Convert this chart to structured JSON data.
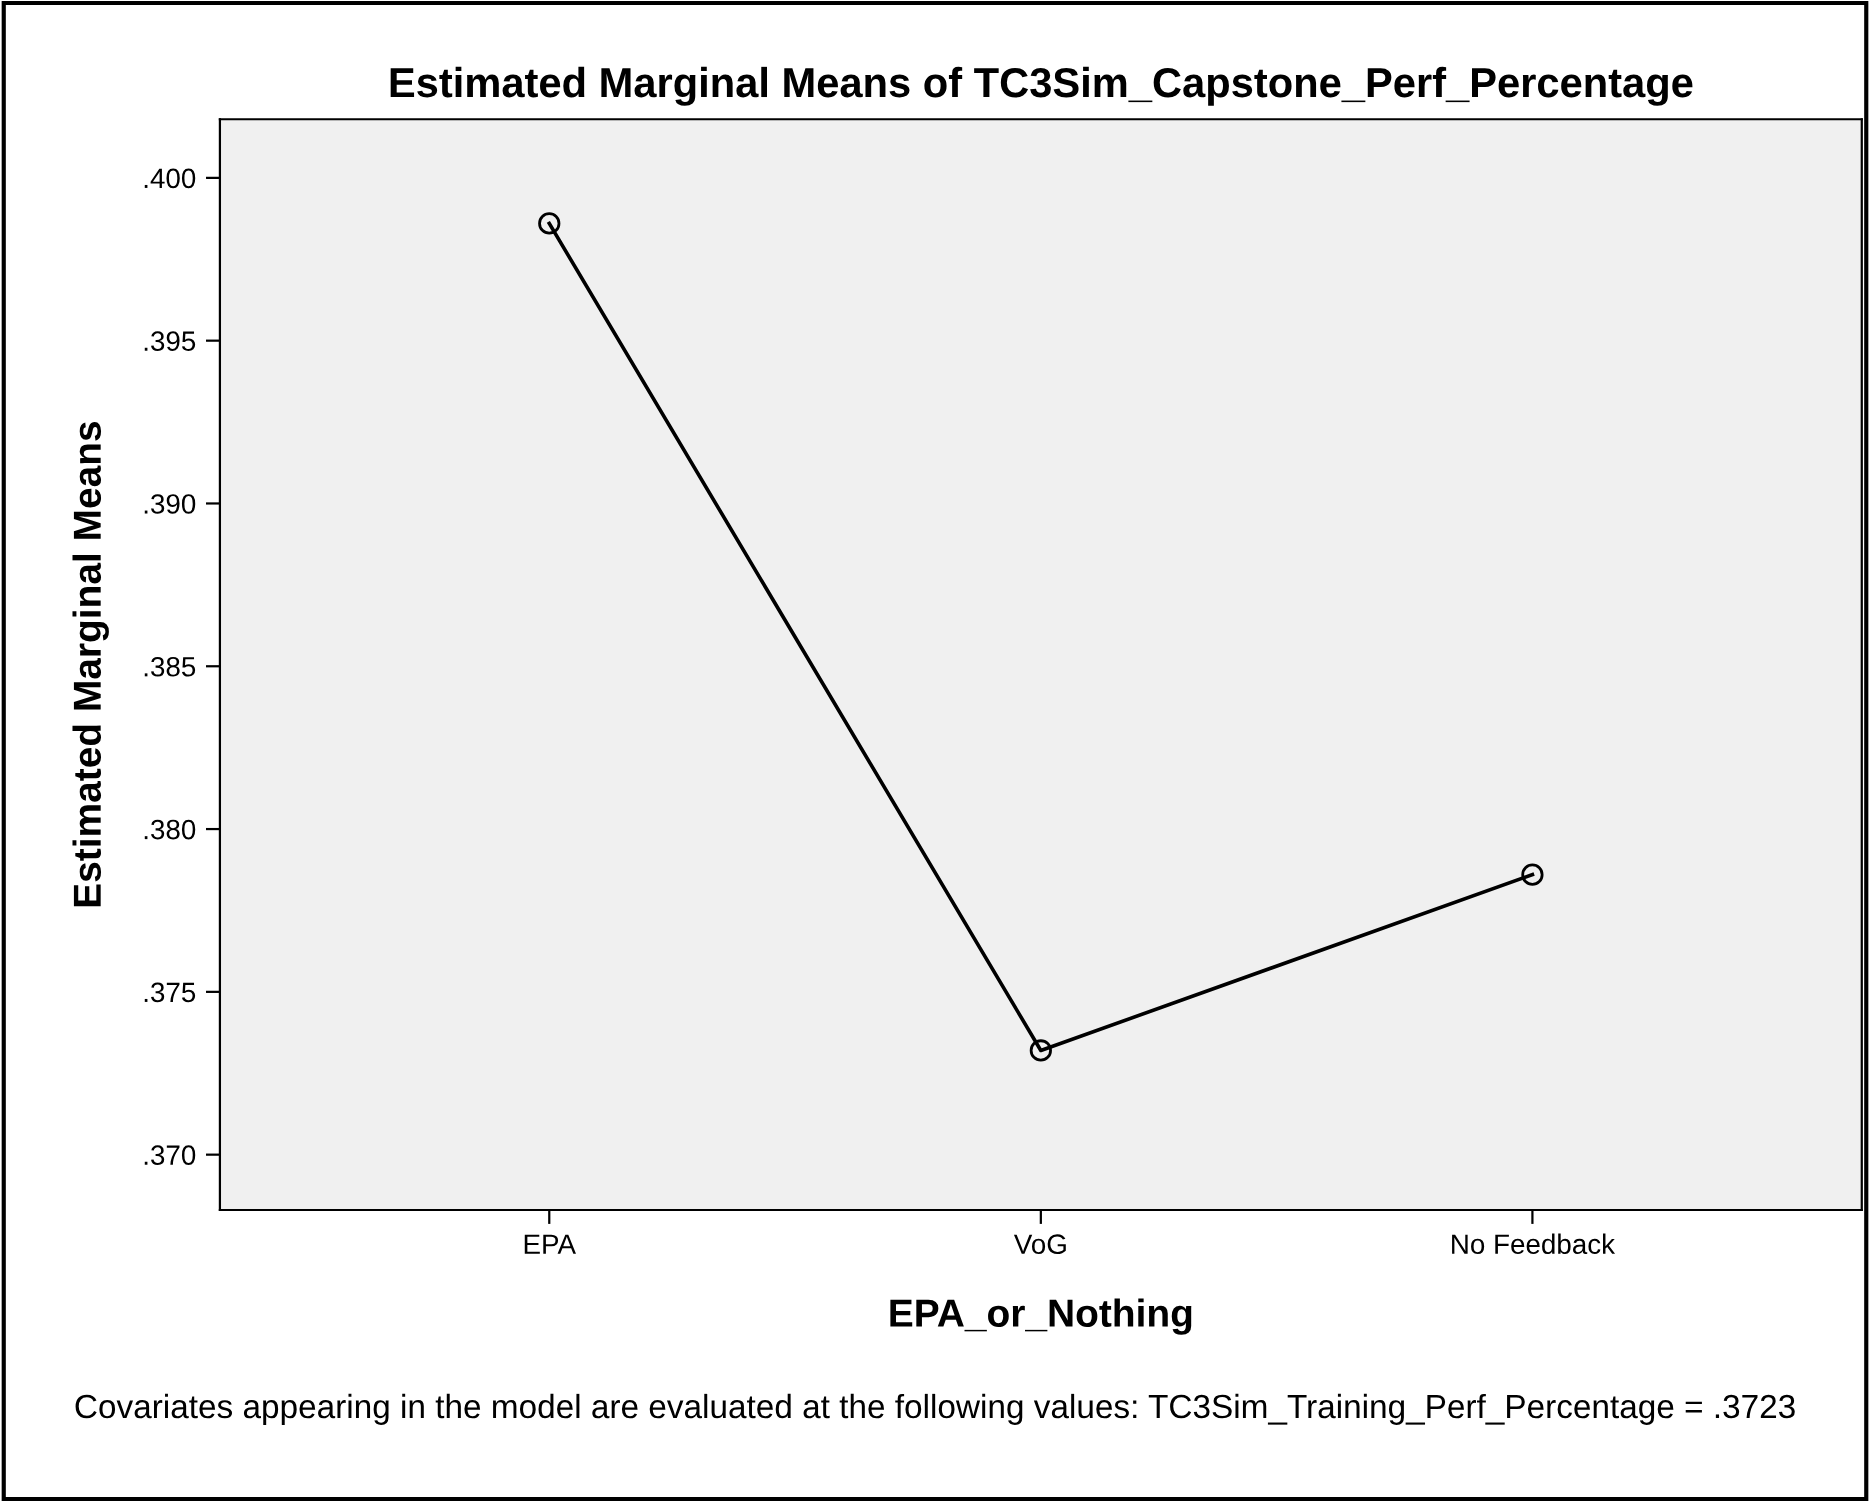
{
  "chart_data": {
    "type": "line",
    "title": "Estimated Marginal Means of TC3Sim_Capstone_Perf_Percentage",
    "xlabel": "EPA_or_Nothing",
    "ylabel": "Estimated Marginal Means",
    "categories": [
      "EPA",
      "VoG",
      "No Feedback"
    ],
    "series": [
      {
        "color": "#000000",
        "values": [
          0.3986,
          0.3732,
          0.3786
        ]
      }
    ],
    "ylim": [
      0.3683,
      0.4018
    ],
    "yticks": [
      {
        "value": 0.37,
        "label": ".370"
      },
      {
        "value": 0.375,
        "label": ".375"
      },
      {
        "value": 0.38,
        "label": ".380"
      },
      {
        "value": 0.385,
        "label": ".385"
      },
      {
        "value": 0.39,
        "label": ".390"
      },
      {
        "value": 0.395,
        "label": ".395"
      },
      {
        "value": 0.4,
        "label": ".400"
      }
    ],
    "marker": "circle",
    "line_style": "solid",
    "grid": false,
    "annotations": [
      "Covariates appearing in the model are evaluated at the following values: TC3Sim_Training_Perf_Percentage = .3723"
    ]
  }
}
